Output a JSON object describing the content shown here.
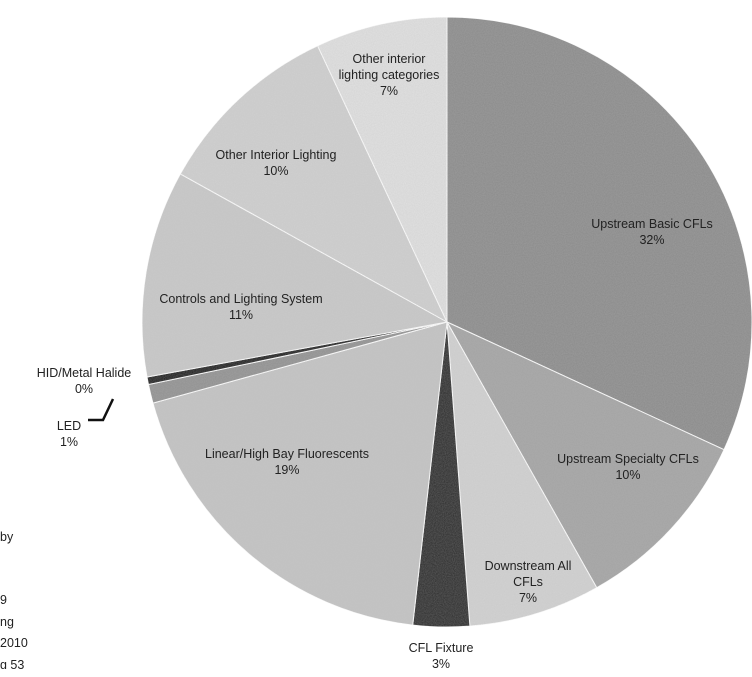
{
  "chart_data": {
    "type": "pie",
    "title": "",
    "slices": [
      {
        "label": "Upstream Basic CFLs",
        "value": 32,
        "pct_label": "32%",
        "color": "#8a8a8a"
      },
      {
        "label": "Upstream Specialty CFLs",
        "value": 10,
        "pct_label": "10%",
        "color": "#a3a3a3"
      },
      {
        "label": "Downstream All CFLs",
        "value": 7,
        "pct_label": "7%",
        "color": "#d2d2d2"
      },
      {
        "label": "CFL Fixture",
        "value": 3,
        "pct_label": "3%",
        "color": "#2b2b2b"
      },
      {
        "label": "Linear/High Bay Fluorescents",
        "value": 19,
        "pct_label": "19%",
        "color": "#c4c4c4"
      },
      {
        "label": "LED",
        "value": 1,
        "pct_label": "1%",
        "color": "#909090"
      },
      {
        "label": "HID/Metal Halide",
        "value": 0.4,
        "pct_label": "0%",
        "color": "#1e1e1e"
      },
      {
        "label": "Controls and Lighting System",
        "value": 11,
        "pct_label": "11%",
        "color": "#c9c9c9"
      },
      {
        "label": "Other Interior Lighting",
        "value": 10,
        "pct_label": "10%",
        "color": "#d0d0d0"
      },
      {
        "label": "Other interior lighting categories",
        "value": 7,
        "pct_label": "7%",
        "color": "#e1e1e1"
      }
    ]
  },
  "side_text": [
    "by",
    "9",
    "ng",
    "2010",
    "g 53"
  ]
}
